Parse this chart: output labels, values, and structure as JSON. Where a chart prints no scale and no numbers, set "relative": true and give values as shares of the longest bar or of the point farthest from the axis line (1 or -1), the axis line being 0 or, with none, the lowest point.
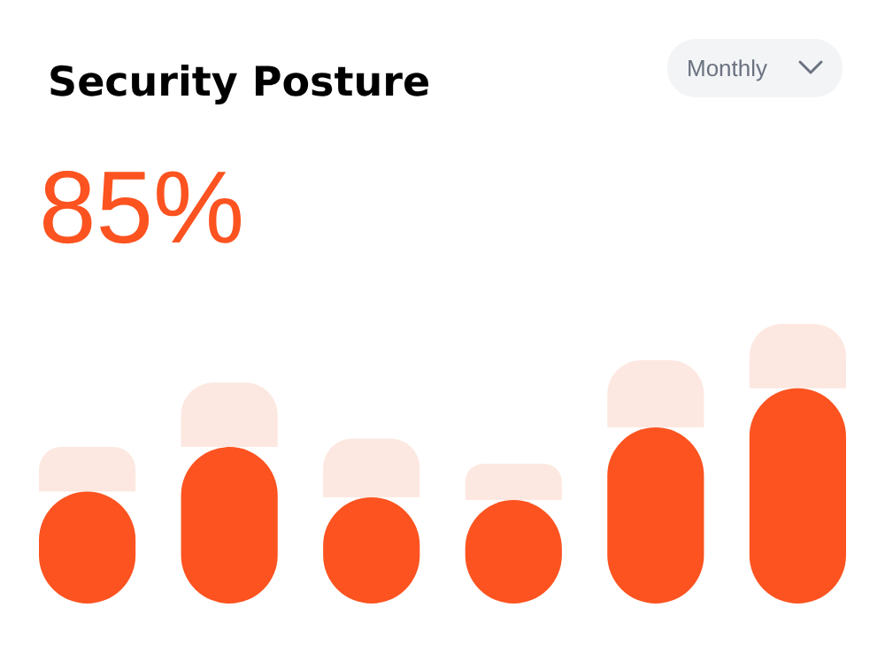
{
  "chart_data": {
    "type": "bar",
    "title": "Security Posture",
    "subtitle": "85%",
    "annotations": [
      "Monthly"
    ],
    "relative": true,
    "stacked": true,
    "categories": [
      null,
      null,
      null,
      null,
      null,
      null
    ],
    "series": [
      {
        "color": "#fc5320",
        "values": [
          0.4,
          0.56,
          0.38,
          0.37,
          0.63,
          0.77
        ]
      },
      {
        "color": "#fde8e1",
        "values": [
          0.16,
          0.23,
          0.21,
          0.13,
          0.24,
          0.23
        ]
      }
    ]
  }
}
